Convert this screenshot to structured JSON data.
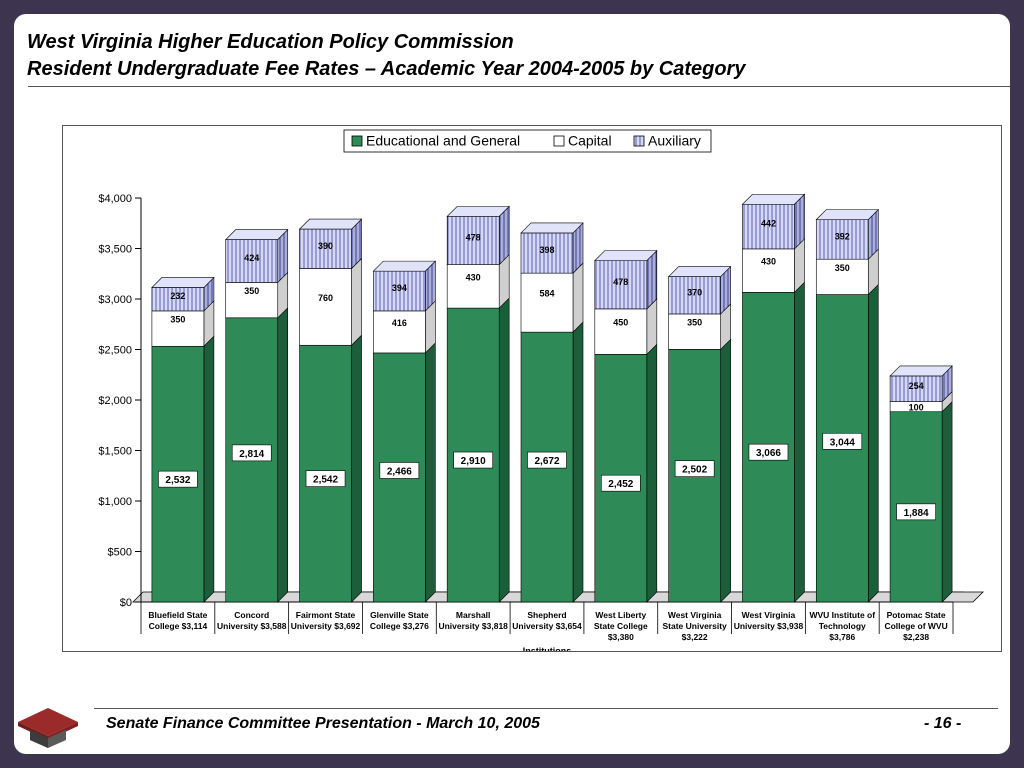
{
  "header": {
    "title_line1": "West Virginia Higher Education Policy Commission",
    "title_line2": "Resident Undergraduate Fee Rates – Academic Year 2004-2005 by Category"
  },
  "footer": {
    "left_text": "Senate Finance Committee Presentation   -   March 10, 2005",
    "page_number": "- 16 -",
    "logo_icon": "graduation-cap-icon"
  },
  "chart_data": {
    "type": "bar",
    "stacked": true,
    "three_d": true,
    "title": "",
    "xlabel": "Institutions",
    "ylabel": "",
    "ylim": [
      0,
      4000
    ],
    "yticks": [
      0,
      500,
      1000,
      1500,
      2000,
      2500,
      3000,
      3500,
      4000
    ],
    "ytick_labels": [
      "$0",
      "$500",
      "$1,000",
      "$1,500",
      "$2,000",
      "$2,500",
      "$3,000",
      "$3,500",
      "$4,000"
    ],
    "legend_position": "top-center",
    "categories": [
      [
        "Bluefield State",
        "College $3,114"
      ],
      [
        "Concord",
        "University $3,588"
      ],
      [
        "Fairmont State",
        "University $3,692"
      ],
      [
        "Glenville State",
        "College $3,276"
      ],
      [
        "Marshall",
        "University $3,818"
      ],
      [
        "Shepherd",
        "University $3,654"
      ],
      [
        "West Liberty",
        "State College",
        "$3,380"
      ],
      [
        "West Virginia",
        "State University",
        "$3,222"
      ],
      [
        "West Virginia",
        "University $3,938"
      ],
      [
        "WVU Institute of",
        "Technology",
        "$3,786"
      ],
      [
        "Potomac State",
        "College of WVU",
        "$2,238"
      ]
    ],
    "series": [
      {
        "name": "Educational and General",
        "color": "#2e8b57",
        "values": [
          2532,
          2814,
          2542,
          2466,
          2910,
          2672,
          2452,
          2502,
          3066,
          3044,
          1884
        ],
        "labels": [
          "2,532",
          "2,814",
          "2,542",
          "2,466",
          "2,910",
          "2,672",
          "2,452",
          "2,502",
          "3,066",
          "3,044",
          "1,884"
        ]
      },
      {
        "name": "Capital",
        "color": "#ffffff",
        "values": [
          350,
          350,
          760,
          416,
          430,
          584,
          450,
          350,
          430,
          350,
          100
        ],
        "labels": [
          "350",
          "350",
          "760",
          "416",
          "430",
          "584",
          "450",
          "350",
          "430",
          "350",
          "100"
        ]
      },
      {
        "name": "Auxiliary",
        "color": "#c8cdf0",
        "values": [
          232,
          424,
          390,
          394,
          478,
          398,
          478,
          370,
          442,
          392,
          254
        ],
        "labels": [
          "232",
          "424",
          "390",
          "394",
          "478",
          "398",
          "478",
          "370",
          "442",
          "392",
          "254"
        ]
      }
    ]
  }
}
